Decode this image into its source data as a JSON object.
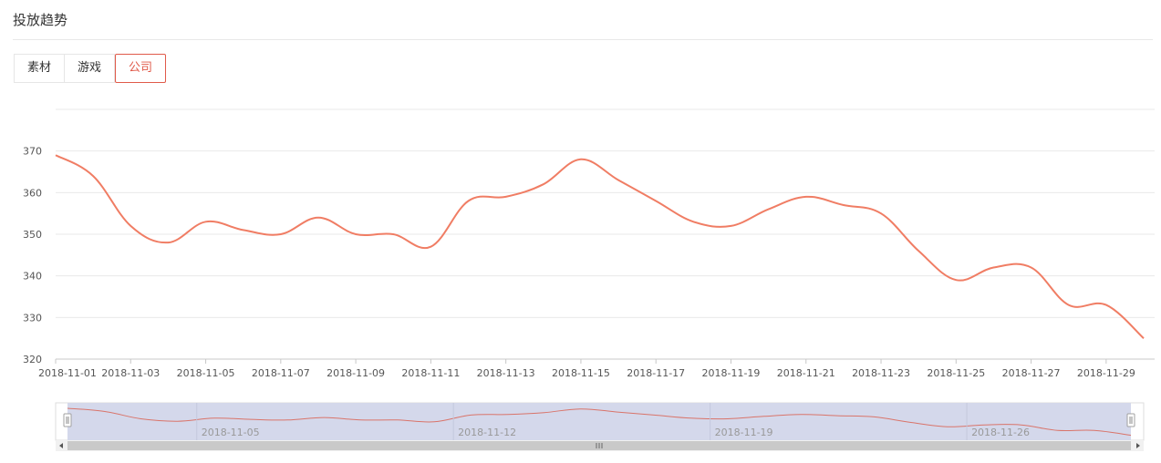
{
  "header": {
    "title": "投放趋势"
  },
  "tabs": [
    {
      "label": "素材",
      "active": false
    },
    {
      "label": "游戏",
      "active": false
    },
    {
      "label": "公司",
      "active": true
    }
  ],
  "colors": {
    "line": "#f07d64",
    "active_tab": "#e05a4a",
    "grid": "#e9e9e9",
    "zoom_fill": "#d2d6ea"
  },
  "chart_data": {
    "type": "line",
    "title": "",
    "xlabel": "",
    "ylabel": "",
    "ylim": [
      320,
      380
    ],
    "yticks": [
      320,
      330,
      340,
      350,
      360,
      370
    ],
    "grid": true,
    "x": [
      "2018-11-01",
      "2018-11-02",
      "2018-11-03",
      "2018-11-04",
      "2018-11-05",
      "2018-11-06",
      "2018-11-07",
      "2018-11-08",
      "2018-11-09",
      "2018-11-10",
      "2018-11-11",
      "2018-11-12",
      "2018-11-13",
      "2018-11-14",
      "2018-11-15",
      "2018-11-16",
      "2018-11-17",
      "2018-11-18",
      "2018-11-19",
      "2018-11-20",
      "2018-11-21",
      "2018-11-22",
      "2018-11-23",
      "2018-11-24",
      "2018-11-25",
      "2018-11-26",
      "2018-11-27",
      "2018-11-28",
      "2018-11-29",
      "2018-11-30"
    ],
    "xtick_labels": [
      "2018-11-01",
      "2018-11-03",
      "2018-11-05",
      "2018-11-07",
      "2018-11-09",
      "2018-11-11",
      "2018-11-13",
      "2018-11-15",
      "2018-11-17",
      "2018-11-19",
      "2018-11-21",
      "2018-11-23",
      "2018-11-25",
      "2018-11-27",
      "2018-11-29"
    ],
    "series": [
      {
        "name": "",
        "values": [
          369,
          364,
          352,
          348,
          353,
          351,
          350,
          354,
          350,
          350,
          347,
          358,
          359,
          362,
          368,
          363,
          358,
          353,
          352,
          356,
          359,
          357,
          355,
          346,
          339,
          342,
          342,
          333,
          333,
          325
        ]
      }
    ],
    "zoom_slider": {
      "range": [
        "2018-11-01",
        "2018-11-30"
      ],
      "labels": [
        "2018-11-05",
        "2018-11-12",
        "2018-11-19",
        "2018-11-26"
      ]
    }
  }
}
